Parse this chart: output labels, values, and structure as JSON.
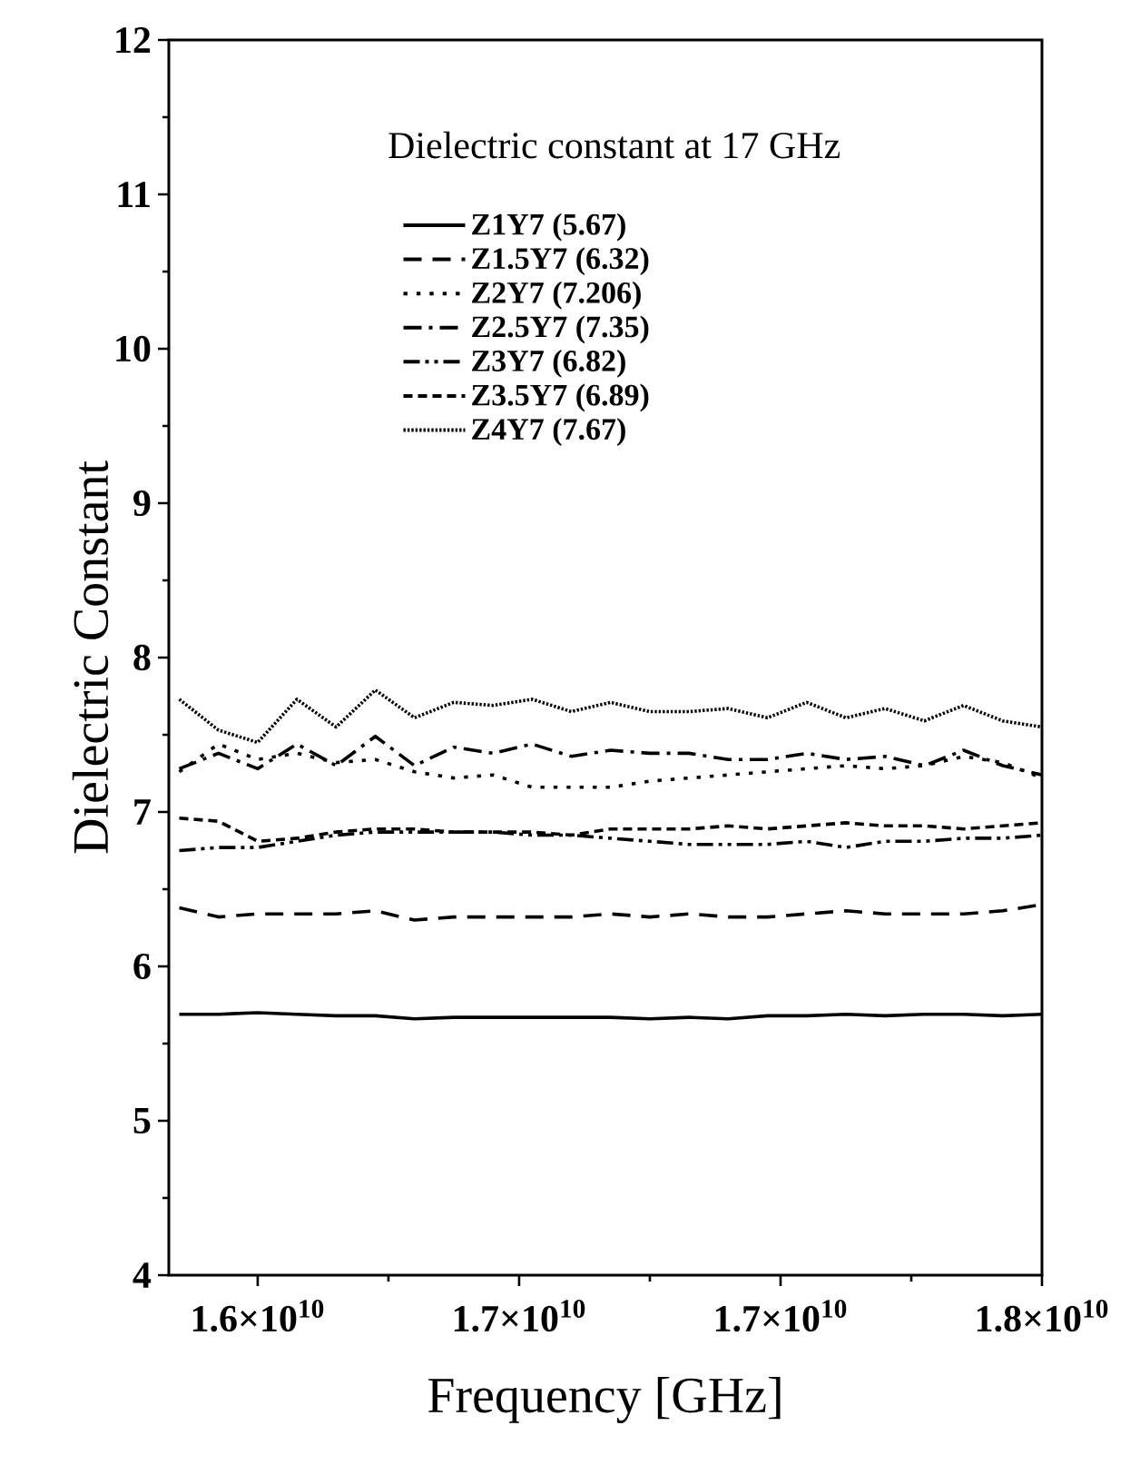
{
  "chart_data": {
    "type": "line",
    "xlabel": "Frequency [GHz]",
    "ylabel": "Dielectric Constant",
    "legend_title": "Dielectric constant at 17 GHz",
    "x": [
      15850000000.0,
      15925000000.0,
      16000000000.0,
      16075000000.0,
      16150000000.0,
      16225000000.0,
      16300000000.0,
      16375000000.0,
      16450000000.0,
      16525000000.0,
      16600000000.0,
      16675000000.0,
      16750000000.0,
      16825000000.0,
      16900000000.0,
      16975000000.0,
      17050000000.0,
      17125000000.0,
      17200000000.0,
      17275000000.0,
      17350000000.0,
      17425000000.0,
      17500000000.0
    ],
    "series": [
      {
        "name": "Z1Y7 (5.67)",
        "color": "#000000",
        "line_style": "solid",
        "values": [
          5.69,
          5.69,
          5.7,
          5.69,
          5.68,
          5.68,
          5.66,
          5.67,
          5.67,
          5.67,
          5.67,
          5.67,
          5.66,
          5.67,
          5.66,
          5.68,
          5.68,
          5.69,
          5.68,
          5.69,
          5.69,
          5.68,
          5.69
        ]
      },
      {
        "name": "Z1.5Y7 (6.32)",
        "color": "#000000",
        "line_style": "dashed",
        "values": [
          6.38,
          6.32,
          6.34,
          6.34,
          6.34,
          6.36,
          6.3,
          6.32,
          6.32,
          6.32,
          6.32,
          6.34,
          6.32,
          6.34,
          6.32,
          6.32,
          6.34,
          6.36,
          6.34,
          6.34,
          6.34,
          6.36,
          6.4
        ]
      },
      {
        "name": "Z2Y7 (7.206)",
        "color": "#000000",
        "line_style": "dotted",
        "values": [
          7.26,
          7.44,
          7.34,
          7.38,
          7.32,
          7.34,
          7.26,
          7.22,
          7.24,
          7.16,
          7.16,
          7.16,
          7.2,
          7.22,
          7.24,
          7.26,
          7.28,
          7.3,
          7.28,
          7.3,
          7.36,
          7.32,
          7.22
        ]
      },
      {
        "name": "Z2.5Y7 (7.35)",
        "color": "#000000",
        "line_style": "dashdot",
        "values": [
          7.28,
          7.38,
          7.28,
          7.44,
          7.3,
          7.49,
          7.3,
          7.42,
          7.38,
          7.44,
          7.36,
          7.4,
          7.38,
          7.38,
          7.34,
          7.34,
          7.38,
          7.34,
          7.36,
          7.3,
          7.4,
          7.3,
          7.24
        ]
      },
      {
        "name": "Z3Y7 (6.82)",
        "color": "#000000",
        "line_style": "dashdotdot",
        "values": [
          6.75,
          6.77,
          6.77,
          6.81,
          6.85,
          6.87,
          6.87,
          6.87,
          6.87,
          6.85,
          6.85,
          6.83,
          6.81,
          6.79,
          6.79,
          6.79,
          6.81,
          6.77,
          6.81,
          6.81,
          6.83,
          6.83,
          6.85
        ]
      },
      {
        "name": "Z3.5Y7 (6.89)",
        "color": "#000000",
        "line_style": "shortdash",
        "values": [
          6.96,
          6.94,
          6.81,
          6.83,
          6.87,
          6.89,
          6.89,
          6.87,
          6.87,
          6.87,
          6.85,
          6.89,
          6.89,
          6.89,
          6.91,
          6.89,
          6.91,
          6.93,
          6.91,
          6.91,
          6.89,
          6.91,
          6.93
        ]
      },
      {
        "name": "Z4Y7 (7.67)",
        "color": "#000000",
        "line_style": "densedot",
        "values": [
          7.73,
          7.53,
          7.45,
          7.73,
          7.55,
          7.79,
          7.61,
          7.71,
          7.69,
          7.73,
          7.65,
          7.71,
          7.65,
          7.65,
          7.67,
          7.61,
          7.71,
          7.61,
          7.67,
          7.59,
          7.69,
          7.59,
          7.55
        ]
      }
    ],
    "xlim": [
      15830000000.0,
      17500000000.0
    ],
    "xticks": [
      {
        "value": 16000000000.0,
        "label": "1.6×10$^{10}$"
      },
      {
        "value": 16500000000.0,
        "label": "1.7×10$^{10}$"
      },
      {
        "value": 17000000000.0,
        "label": "1.7×10$^{10}$"
      },
      {
        "value": 17500000000.0,
        "label": "1.8×10$^{10}$"
      }
    ],
    "ylim": [
      4,
      12
    ],
    "yticks": [
      4,
      5,
      6,
      7,
      8,
      9,
      10,
      11,
      12
    ],
    "legend": "top",
    "grid": false
  }
}
